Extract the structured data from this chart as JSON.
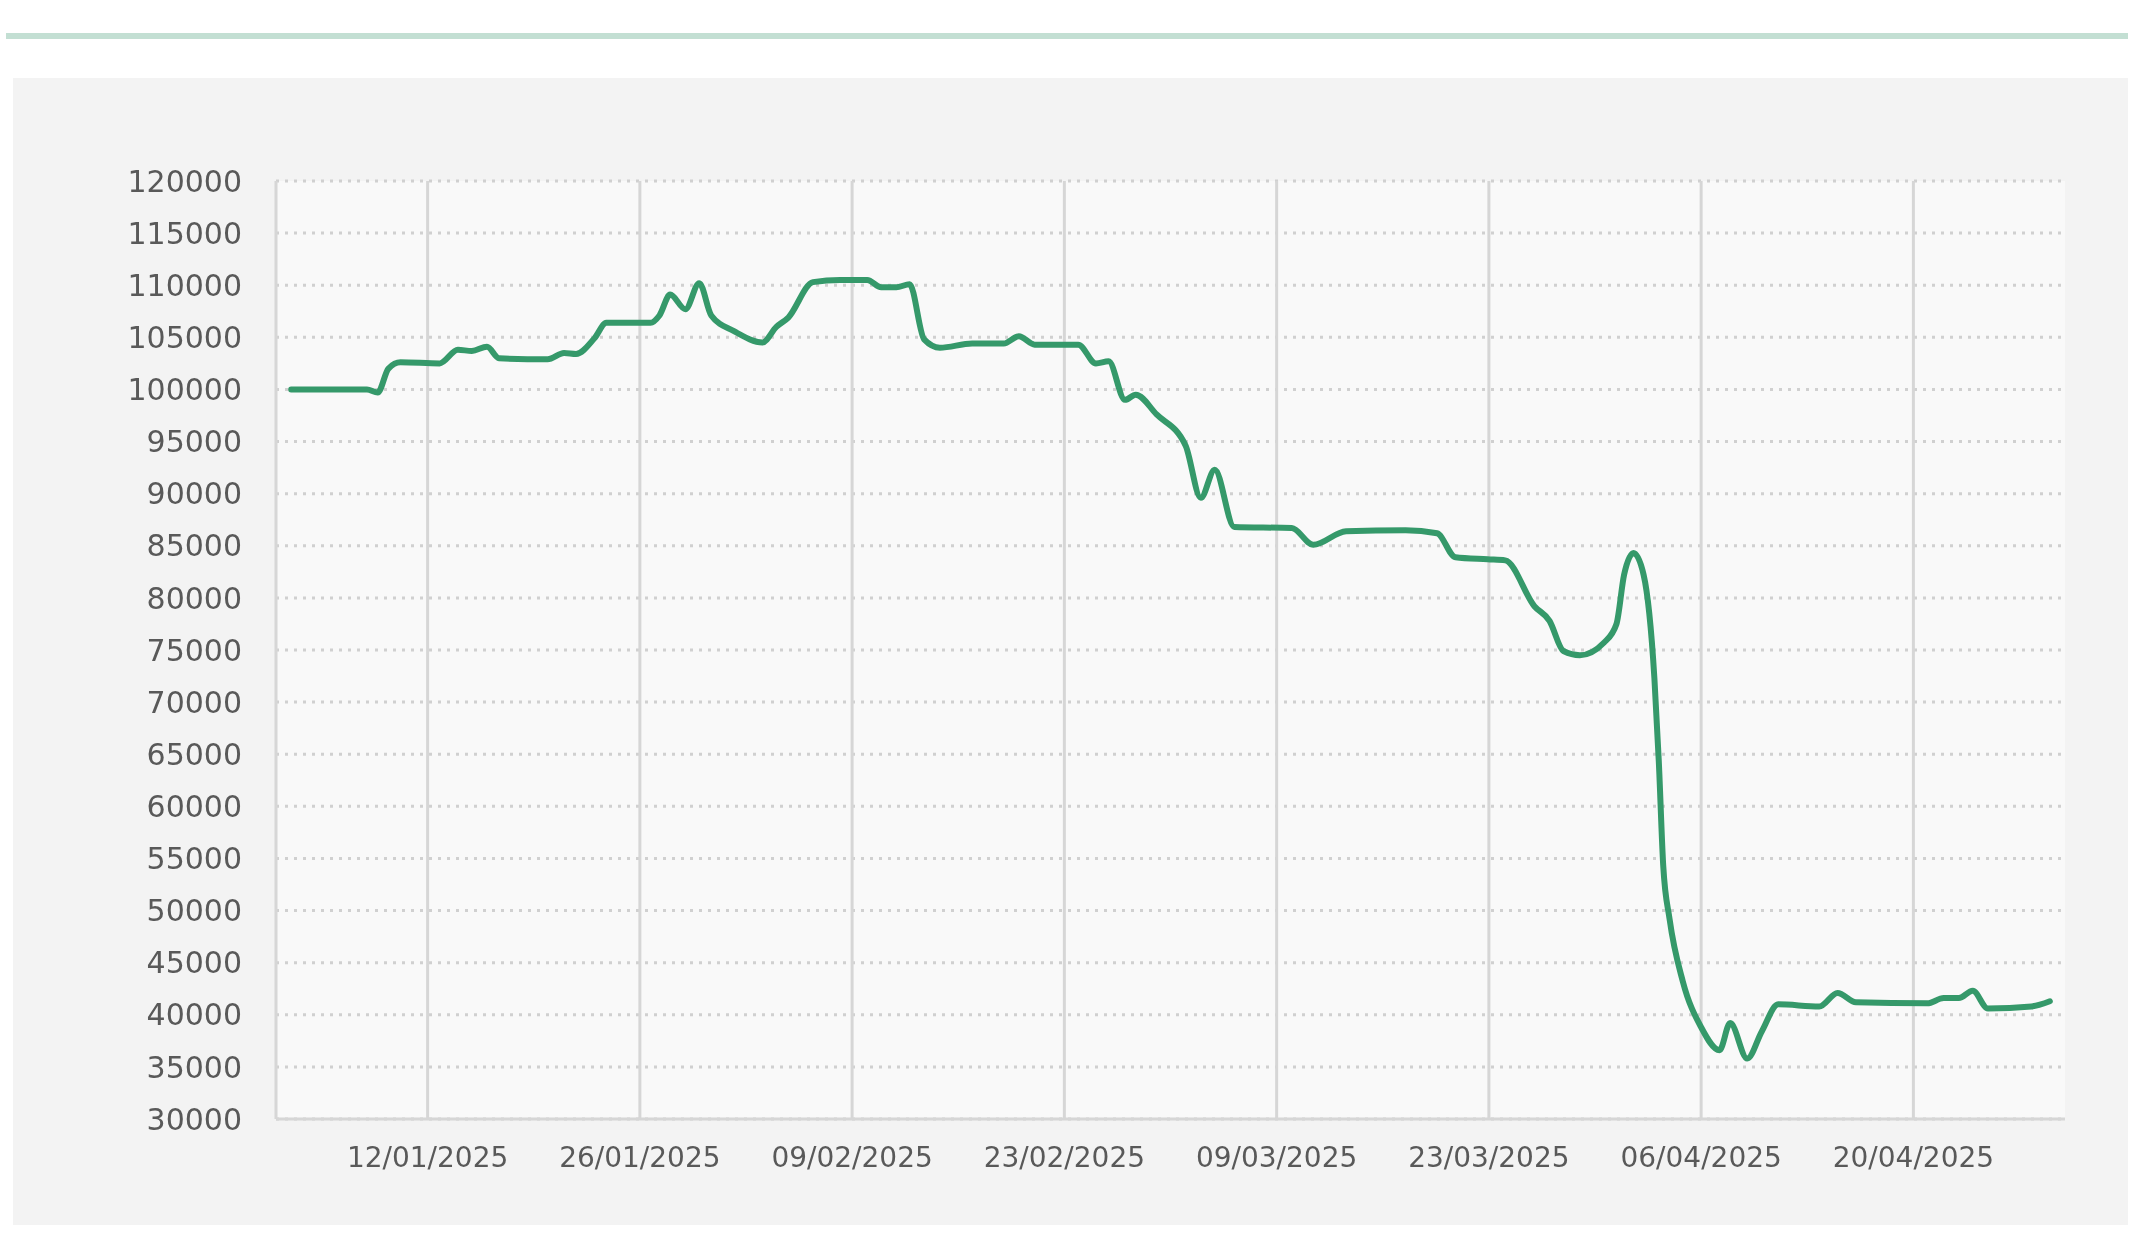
{
  "chart_data": {
    "type": "line",
    "x": [
      "2025-01-03",
      "2025-01-08",
      "2025-01-08T17:00",
      "2025-01-09T10:00",
      "2025-01-10T05:00",
      "2025-01-12T19:00",
      "2025-01-14",
      "2025-01-14T22:00",
      "2025-01-15T22:00",
      "2025-01-16T17:00",
      "2025-01-18T14:00",
      "2025-01-19T22:00",
      "2025-01-21",
      "2025-01-21T19:00",
      "2025-01-23",
      "2025-01-23T19:00",
      "2025-01-26T17:00",
      "2025-01-27T07:00",
      "2025-01-28",
      "2025-01-29",
      "2025-01-29T22:00",
      "2025-01-30T17:00",
      "2025-02-01T05:00",
      "2025-02-03T02:00",
      "2025-02-04",
      "2025-02-04T19:00",
      "2025-02-06T10:00",
      "2025-02-08T05:00",
      "2025-02-10",
      "2025-02-10T22:00",
      "2025-02-11T22:00",
      "2025-02-12T19:00",
      "2025-02-13T18:00",
      "2025-02-14T19:00",
      "2025-02-16T22:00",
      "2025-02-19",
      "2025-02-20",
      "2025-02-21T01:00",
      "2025-02-23T22:00",
      "2025-02-25T02:00",
      "2025-02-25T22:00",
      "2025-02-27",
      "2025-02-27T17:00",
      "2025-03-01T02:00",
      "2025-03-03",
      "2025-03-04",
      "2025-03-04T22:00",
      "2025-03-06T05:00",
      "2025-03-10",
      "2025-03-11T10:00",
      "2025-03-13T14:00",
      "2025-03-17T12:00",
      "2025-03-19T14:00",
      "2025-03-20T19:00",
      "2025-03-22T22:00",
      "2025-03-24T02:00",
      "2025-03-26",
      "2025-03-27",
      "2025-03-27T22:00",
      "2025-03-29",
      "2025-03-30T14:00",
      "2025-03-31T10:00",
      "2025-03-31T22:00",
      "2025-04-01T13:00",
      "2025-04-02T05:00",
      "2025-04-02T22:00",
      "2025-04-03T05:00",
      "2025-04-03T12:00",
      "2025-04-03T22:00",
      "2025-04-04T19:00",
      "2025-04-06",
      "2025-04-07T05:00",
      "2025-04-07T22:00",
      "2025-04-09T01:00",
      "2025-04-10",
      "2025-04-11T02:00",
      "2025-04-13T19:00",
      "2025-04-15",
      "2025-04-16T05:00",
      "2025-04-20T22:00",
      "2025-04-22",
      "2025-04-23",
      "2025-04-23T22:00",
      "2025-04-24T22:00",
      "2025-04-27T19:00",
      "2025-04-29"
    ],
    "series": [
      {
        "color": "#35996a",
        "values": [
          100000,
          100000,
          99700,
          102000,
          102600,
          102500,
          103800,
          103700,
          104100,
          103000,
          102900,
          102900,
          103500,
          103400,
          104900,
          106400,
          106400,
          107100,
          109100,
          107700,
          110200,
          107100,
          105600,
          104500,
          106000,
          106900,
          110300,
          110500,
          110500,
          109800,
          109800,
          110100,
          104800,
          104000,
          104400,
          104400,
          105100,
          104300,
          104300,
          102500,
          102700,
          99000,
          99500,
          97600,
          94600,
          89600,
          92300,
          86800,
          86700,
          85100,
          86400,
          86500,
          86200,
          83900,
          83700,
          83600,
          79200,
          77800,
          74900,
          74500,
          75700,
          77500,
          82200,
          84300,
          82200,
          72300,
          64300,
          54300,
          49200,
          43200,
          38800,
          36600,
          39200,
          35800,
          38400,
          41000,
          40800,
          42100,
          41200,
          41100,
          41600,
          41600,
          42300,
          40600,
          40800,
          41300
        ]
      }
    ],
    "xlim": [
      "2025-01-02",
      "2025-04-30"
    ],
    "xticks": [
      {
        "value": "2025-01-12",
        "label": "12/01/2025"
      },
      {
        "value": "2025-01-26",
        "label": "26/01/2025"
      },
      {
        "value": "2025-02-09",
        "label": "09/02/2025"
      },
      {
        "value": "2025-02-23",
        "label": "23/02/2025"
      },
      {
        "value": "2025-03-09",
        "label": "09/03/2025"
      },
      {
        "value": "2025-03-23",
        "label": "23/03/2025"
      },
      {
        "value": "2025-04-06",
        "label": "06/04/2025"
      },
      {
        "value": "2025-04-20",
        "label": "20/04/2025"
      }
    ],
    "ylim": [
      30000,
      120000
    ],
    "yticks": [
      30000,
      35000,
      40000,
      45000,
      50000,
      55000,
      60000,
      65000,
      70000,
      75000,
      80000,
      85000,
      90000,
      95000,
      100000,
      105000,
      110000,
      115000,
      120000
    ],
    "grid": true,
    "marker": "none",
    "line_style": "solid"
  }
}
